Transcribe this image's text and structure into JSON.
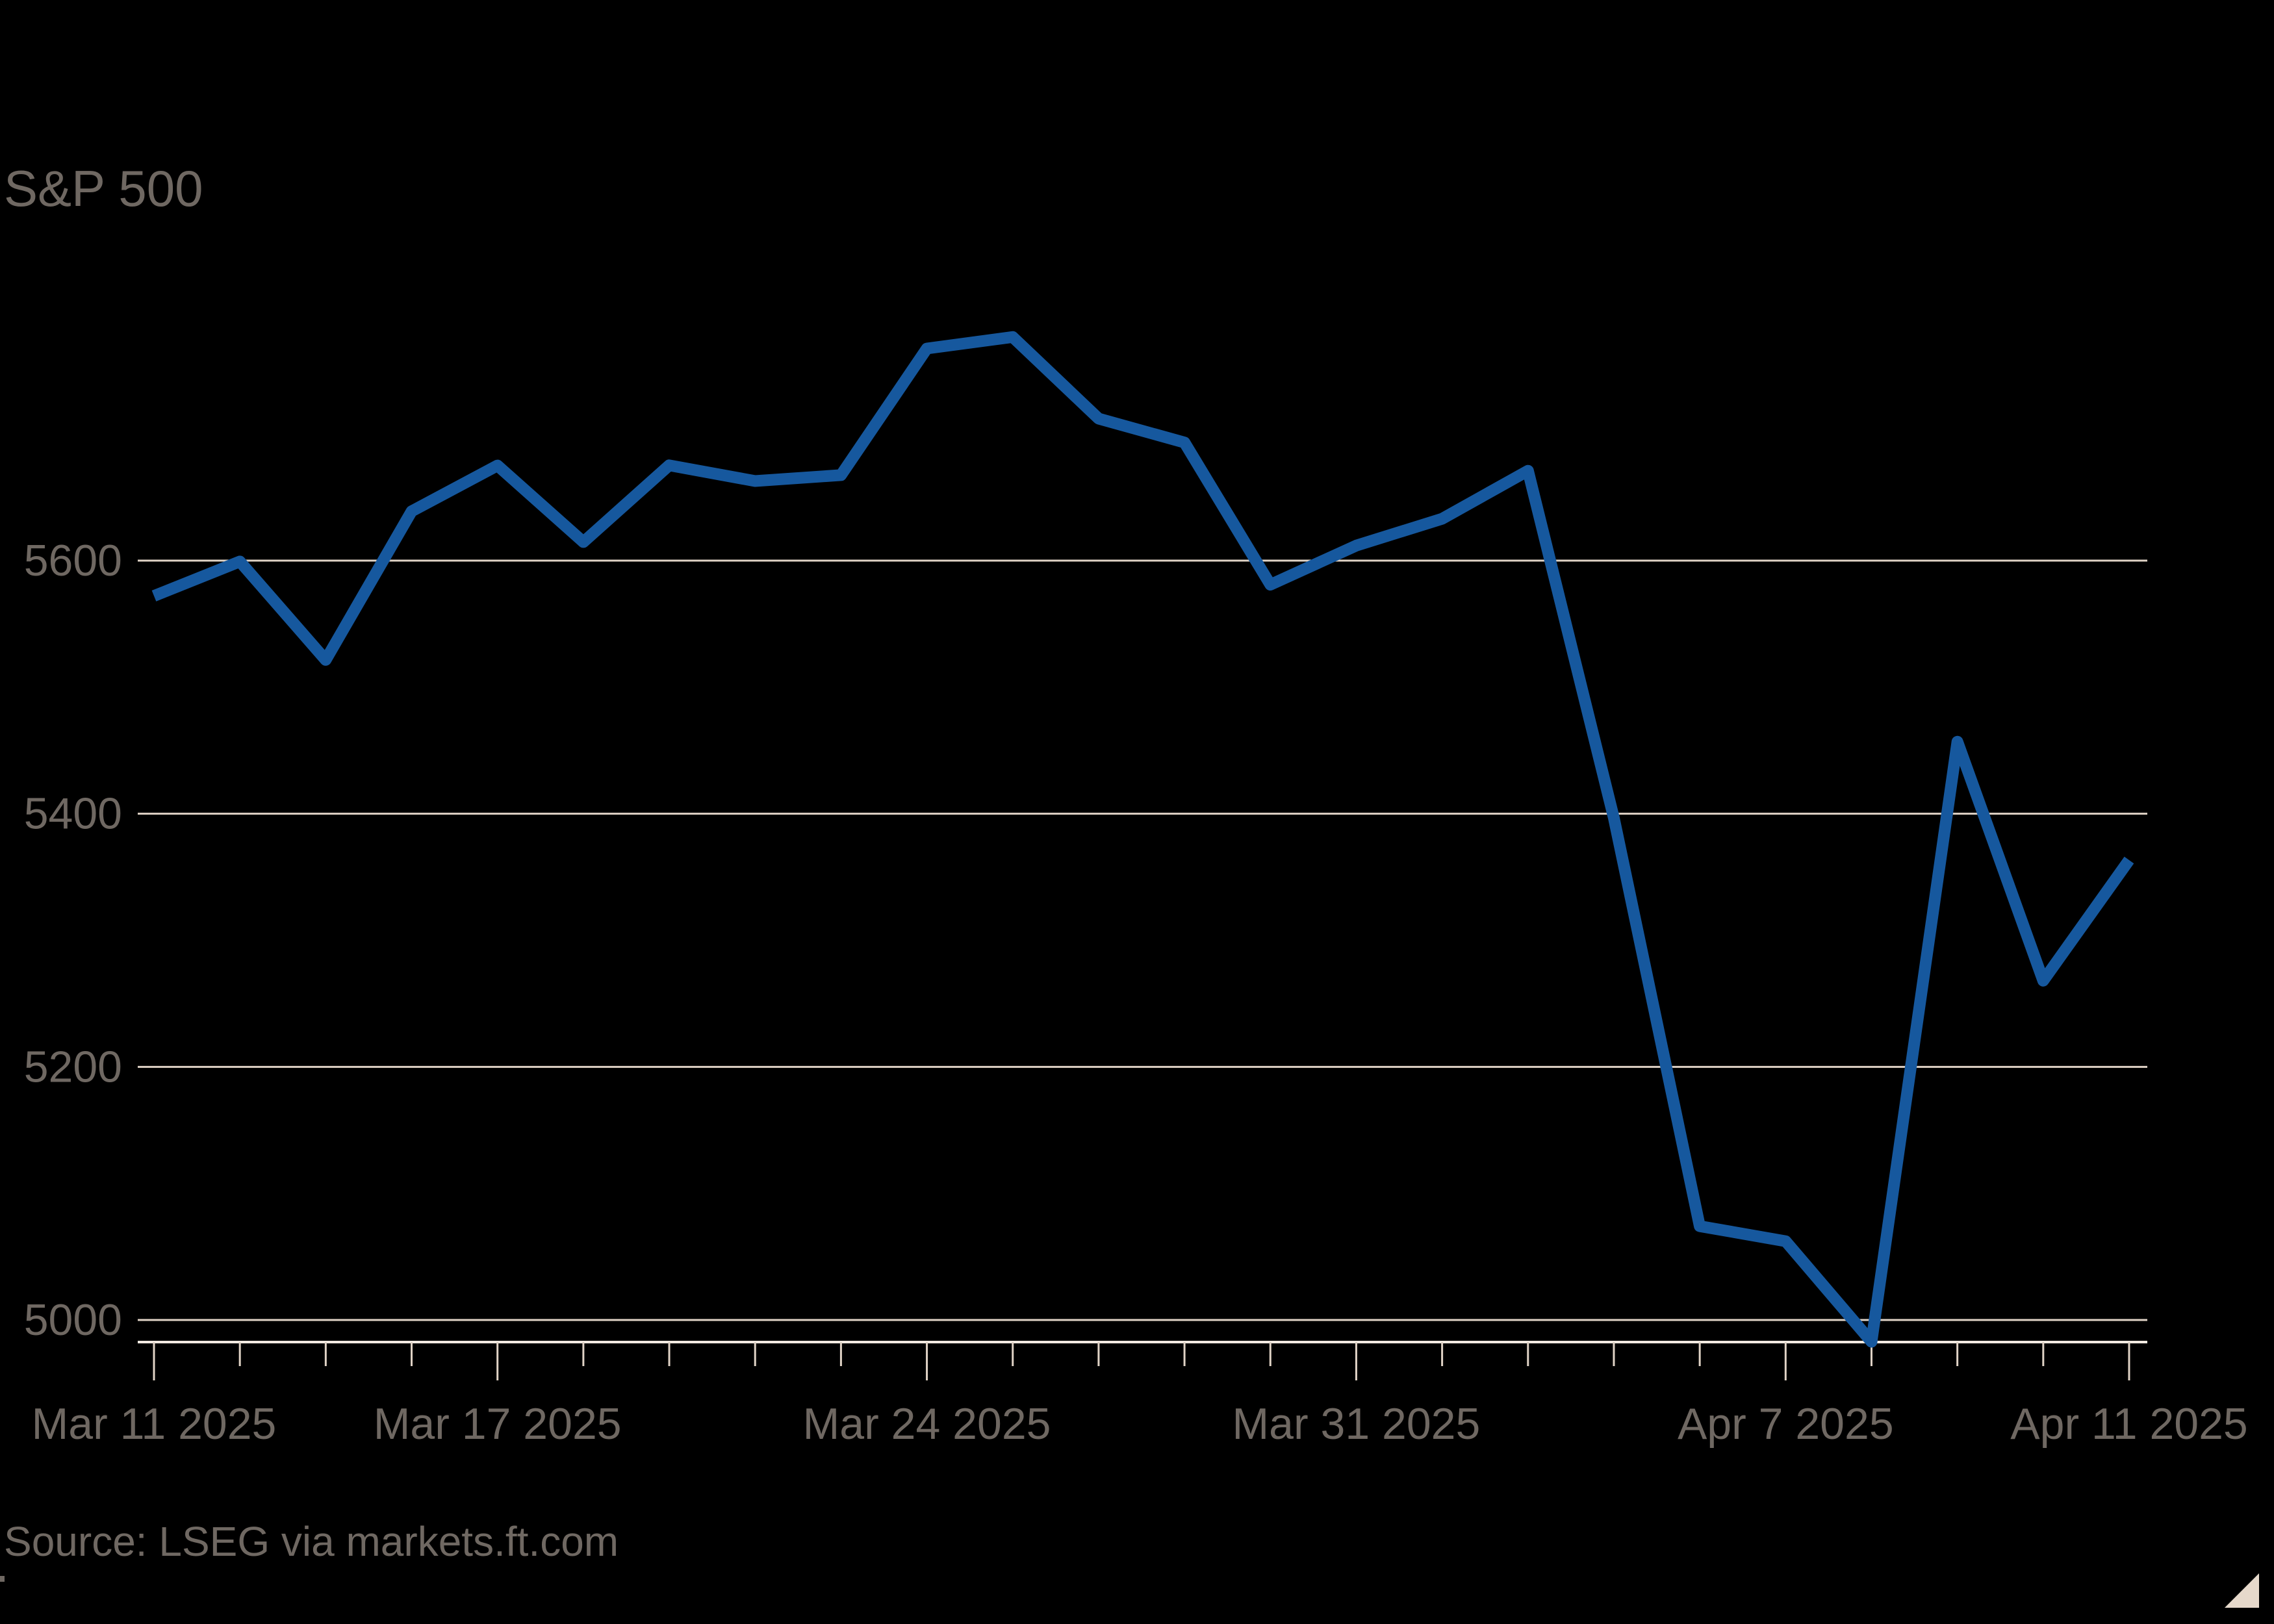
{
  "title": "S&P 500",
  "source": {
    "text": "Source: LSEG via markets.ft.com"
  },
  "colors": {
    "background": "#000000",
    "line": "#16589E",
    "gridline": "#E0D3C6",
    "axis_line": "#F2EAE1",
    "tick": "#E0D3C6",
    "text": "#6F6862",
    "corner_triangle": "#E6D9CB"
  },
  "chart_data": {
    "type": "line",
    "title": "S&P 500",
    "xlabel": "",
    "ylabel": "",
    "grid": "horizontal",
    "legend": "none",
    "ylim": [
      4983,
      5790
    ],
    "y_gridlines": [
      5600,
      5400,
      5200,
      5000
    ],
    "x": [
      "Mar 11 2025",
      "Mar 12 2025",
      "Mar 13 2025",
      "Mar 14 2025",
      "Mar 17 2025",
      "Mar 18 2025",
      "Mar 19 2025",
      "Mar 20 2025",
      "Mar 21 2025",
      "Mar 24 2025",
      "Mar 25 2025",
      "Mar 26 2025",
      "Mar 27 2025",
      "Mar 28 2025",
      "Mar 31 2025",
      "Apr 1 2025",
      "Apr 2 2025",
      "Apr 3 2025",
      "Apr 4 2025",
      "Apr 7 2025",
      "Apr 8 2025",
      "Apr 9 2025",
      "Apr 10 2025",
      "Apr 11 2025"
    ],
    "x_major_ticks": [
      {
        "index": 0,
        "label": "Mar 11 2025"
      },
      {
        "index": 4,
        "label": "Mar 17 2025"
      },
      {
        "index": 9,
        "label": "Mar 24 2025"
      },
      {
        "index": 14,
        "label": "Mar 31 2025"
      },
      {
        "index": 19,
        "label": "Apr 7 2025"
      },
      {
        "index": 23,
        "label": "Apr 11 2025"
      }
    ],
    "series": [
      {
        "name": "S&P 500",
        "values": [
          5572.07,
          5599.3,
          5521.52,
          5638.94,
          5675.12,
          5614.66,
          5675.29,
          5662.89,
          5667.56,
          5767.57,
          5776.65,
          5712.2,
          5693.31,
          5580.94,
          5611.85,
          5633.07,
          5670.97,
          5396.52,
          5074.08,
          5062.25,
          4982.77,
          5456.9,
          5268.05,
          5363.36
        ]
      }
    ]
  }
}
